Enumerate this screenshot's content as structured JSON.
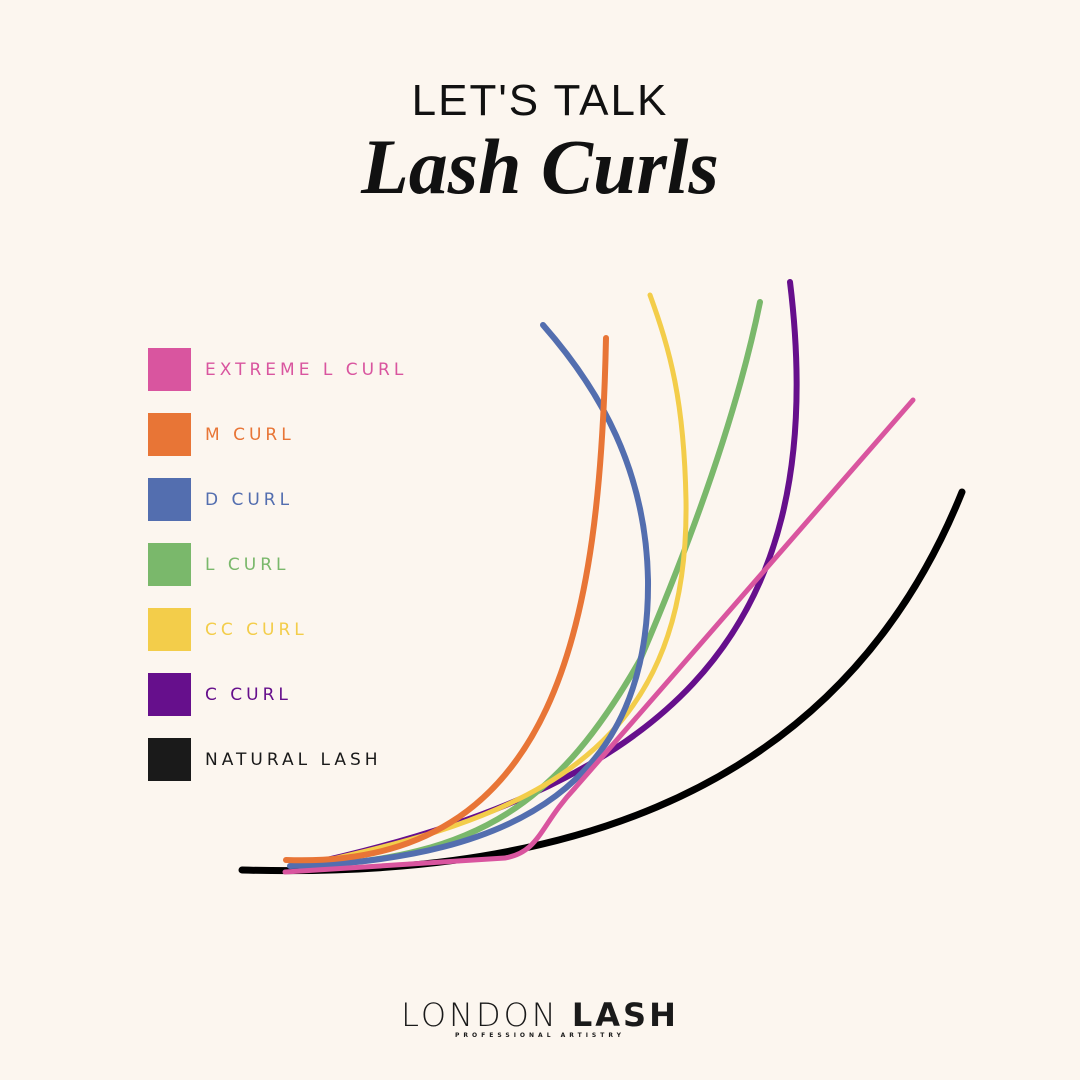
{
  "header": {
    "pretitle": "LET'S TALK",
    "title": "Lash Curls"
  },
  "legend": [
    {
      "label": "EXTREME L CURL",
      "color": "#d9559f"
    },
    {
      "label": "M CURL",
      "color": "#e87536"
    },
    {
      "label": "D CURL",
      "color": "#536eaf"
    },
    {
      "label": "L CURL",
      "color": "#7ab86b"
    },
    {
      "label": "CC CURL",
      "color": "#f3cd4a"
    },
    {
      "label": "C CURL",
      "color": "#660f8c"
    },
    {
      "label": "NATURAL LASH",
      "color": "#1a1a1a"
    }
  ],
  "logo": {
    "word1": "LONDON",
    "word2": "LASH",
    "tagline": "PROFESSIONAL ARTISTRY"
  },
  "background": "#fcf6ef"
}
